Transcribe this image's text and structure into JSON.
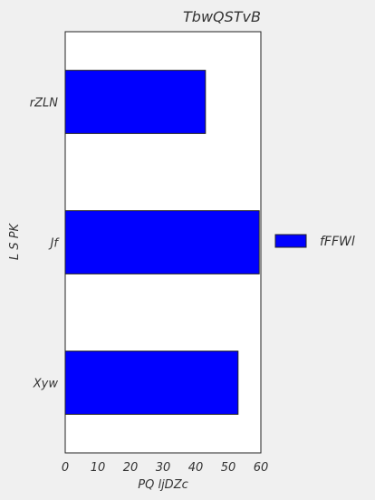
{
  "chart_data": {
    "type": "bar",
    "orientation": "horizontal",
    "title": "TbwQSTvB",
    "xlabel": "PQ ljDZc",
    "ylabel": "L S PK",
    "categories": [
      "rZLN",
      "Jf",
      "Xyw"
    ],
    "series": [
      {
        "name": "fFFWl",
        "values": [
          43,
          59.5,
          53
        ],
        "color": "#0000ff"
      }
    ],
    "xlim": [
      0,
      60
    ],
    "xticks": [
      "0",
      "10",
      "20",
      "30",
      "40",
      "50",
      "60"
    ],
    "grid": false,
    "legend_position": "right"
  }
}
